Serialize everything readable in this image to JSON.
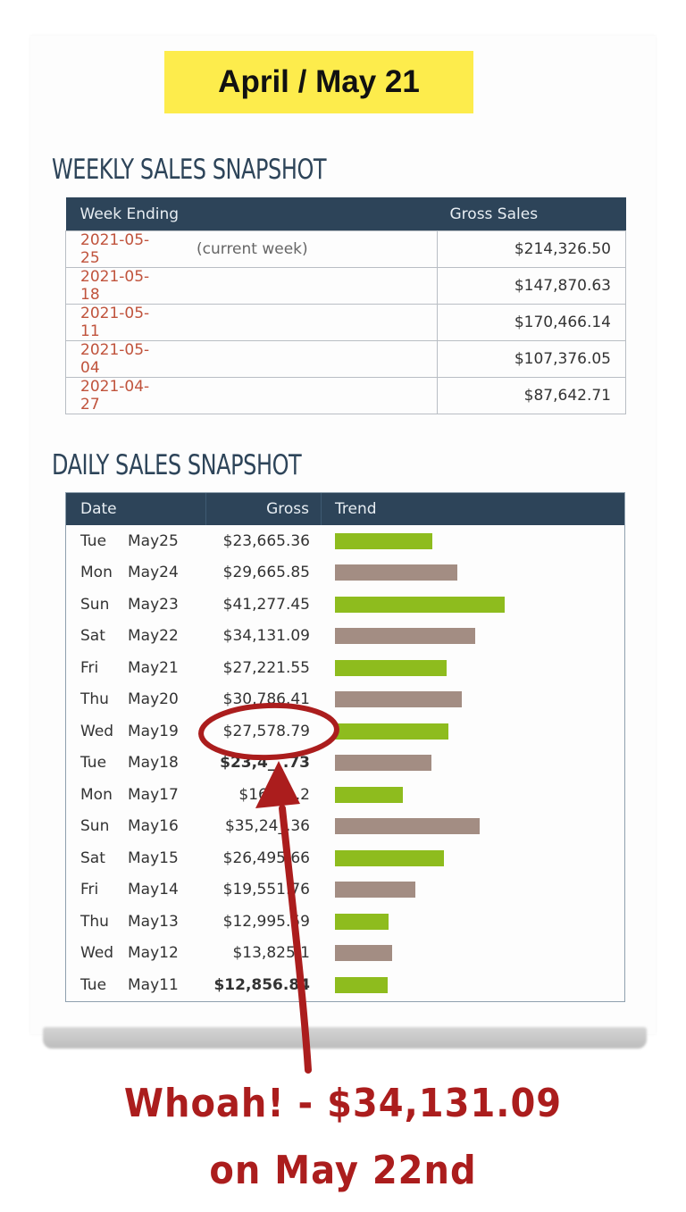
{
  "header_badge": "April / May 21",
  "weekly": {
    "title": "WEEKLY SALES SNAPSHOT",
    "columns": [
      "Week Ending",
      "Gross Sales"
    ],
    "rows": [
      {
        "date": "2021-05-25",
        "note": "(current week)",
        "gross": "$214,326.50"
      },
      {
        "date": "2021-05-18",
        "note": "",
        "gross": "$147,870.63"
      },
      {
        "date": "2021-05-11",
        "note": "",
        "gross": "$170,466.14"
      },
      {
        "date": "2021-05-04",
        "note": "",
        "gross": "$107,376.05"
      },
      {
        "date": "2021-04-27",
        "note": "",
        "gross": "$87,642.71"
      }
    ]
  },
  "daily": {
    "title": "DAILY SALES SNAPSHOT",
    "columns": [
      "Date",
      "Gross",
      "Trend"
    ],
    "colors": {
      "green": "#8ebc1e",
      "taupe": "#a38d83"
    },
    "rows": [
      {
        "day": "Tue",
        "md": "May25",
        "gross": "$23,665.36",
        "bold": false,
        "trend": 23665.36,
        "color": "green"
      },
      {
        "day": "Mon",
        "md": "May24",
        "gross": "$29,665.85",
        "bold": false,
        "trend": 29665.85,
        "color": "taupe"
      },
      {
        "day": "Sun",
        "md": "May23",
        "gross": "$41,277.45",
        "bold": false,
        "trend": 41277.45,
        "color": "green"
      },
      {
        "day": "Sat",
        "md": "May22",
        "gross": "$34,131.09",
        "bold": false,
        "trend": 34131.09,
        "color": "taupe"
      },
      {
        "day": "Fri",
        "md": "May21",
        "gross": "$27,221.55",
        "bold": false,
        "trend": 27221.55,
        "color": "green"
      },
      {
        "day": "Thu",
        "md": "May20",
        "gross": "$30,786.41",
        "bold": false,
        "trend": 30786.41,
        "color": "taupe"
      },
      {
        "day": "Wed",
        "md": "May19",
        "gross": "$27,578.79",
        "bold": false,
        "trend": 27578.79,
        "color": "green"
      },
      {
        "day": "Tue",
        "md": "May18",
        "gross": "$23,4__.73",
        "bold": true,
        "trend": 23400,
        "color": "taupe"
      },
      {
        "day": "Mon",
        "md": "May17",
        "gross": "$16,___.2",
        "bold": false,
        "trend": 16500,
        "color": "green"
      },
      {
        "day": "Sun",
        "md": "May16",
        "gross": "$35,24_.36",
        "bold": false,
        "trend": 35240,
        "color": "taupe"
      },
      {
        "day": "Sat",
        "md": "May15",
        "gross": "$26,495.66",
        "bold": false,
        "trend": 26495.66,
        "color": "green"
      },
      {
        "day": "Fri",
        "md": "May14",
        "gross": "$19,551.76",
        "bold": false,
        "trend": 19551.76,
        "color": "taupe"
      },
      {
        "day": "Thu",
        "md": "May13",
        "gross": "$12,995.59",
        "bold": false,
        "trend": 12995.59,
        "color": "green"
      },
      {
        "day": "Wed",
        "md": "May12",
        "gross": "$13,825.1",
        "bold": false,
        "trend": 13825.1,
        "color": "taupe"
      },
      {
        "day": "Tue",
        "md": "May11",
        "gross": "$12,856.84",
        "bold": true,
        "trend": 12856.84,
        "color": "green"
      }
    ]
  },
  "annotation": {
    "line1": "Whoah! - $34,131.09",
    "line2": "on May 22nd",
    "color": "#ab1d1d"
  }
}
